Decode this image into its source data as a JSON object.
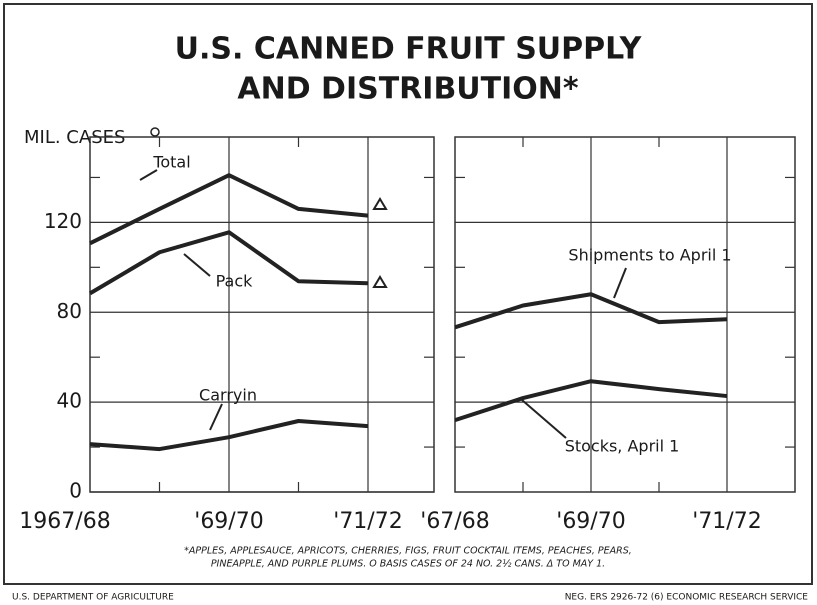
{
  "title_lines": [
    "U.S. CANNED FRUIT SUPPLY",
    "AND DISTRIBUTION*"
  ],
  "y_label": "MIL. CASES",
  "footnotes": [
    "*APPLES, APPLESAUCE, APRICOTS, CHERRIES, FIGS, FRUIT COCKTAIL ITEMS, PEACHES, PEARS,",
    "PINEAPPLE, AND PURPLE PLUMS.   O BASIS CASES OF 24 NO. 2½ CANS.   Δ TO MAY 1."
  ],
  "footer_left": "U.S. DEPARTMENT OF AGRICULTURE",
  "footer_right": "NEG. ERS 2926-72 (6)    ECONOMIC RESEARCH SERVICE",
  "chart_data": [
    {
      "type": "line",
      "categories": [
        "1967/68",
        null,
        "'69/70",
        null,
        "'71/72"
      ],
      "ylim": [
        0,
        158
      ],
      "yticks": [
        0,
        40,
        80,
        120
      ],
      "minor_yticks": [
        20,
        60,
        100,
        140
      ],
      "grid": true,
      "series": [
        {
          "name": "Total",
          "color": "#222222",
          "values": [
            110.7,
            126,
            141,
            126,
            123
          ]
        },
        {
          "name": "Pack",
          "color": "#222222",
          "values": [
            88.4,
            106.7,
            115.6,
            93.8,
            92.9
          ]
        },
        {
          "name": "Carryin",
          "color": "#222222",
          "values": [
            21.3,
            19.1,
            24.4,
            31.6,
            29.3
          ]
        }
      ]
    },
    {
      "type": "line",
      "categories": [
        "'67/68",
        null,
        "'69/70",
        null,
        "'71/72"
      ],
      "ylim": [
        0,
        158
      ],
      "gridlines": [
        40,
        80,
        120
      ],
      "minor_yticks": [
        20,
        60,
        100,
        140
      ],
      "grid": true,
      "series": [
        {
          "name": "Shipments to April 1",
          "color": "#222222",
          "values": [
            73.3,
            83,
            88,
            75.6,
            76.9
          ]
        },
        {
          "name": "Stocks, April 1",
          "color": "#222222",
          "values": [
            32,
            41.8,
            49.3,
            45.8,
            42.7
          ]
        }
      ]
    }
  ]
}
